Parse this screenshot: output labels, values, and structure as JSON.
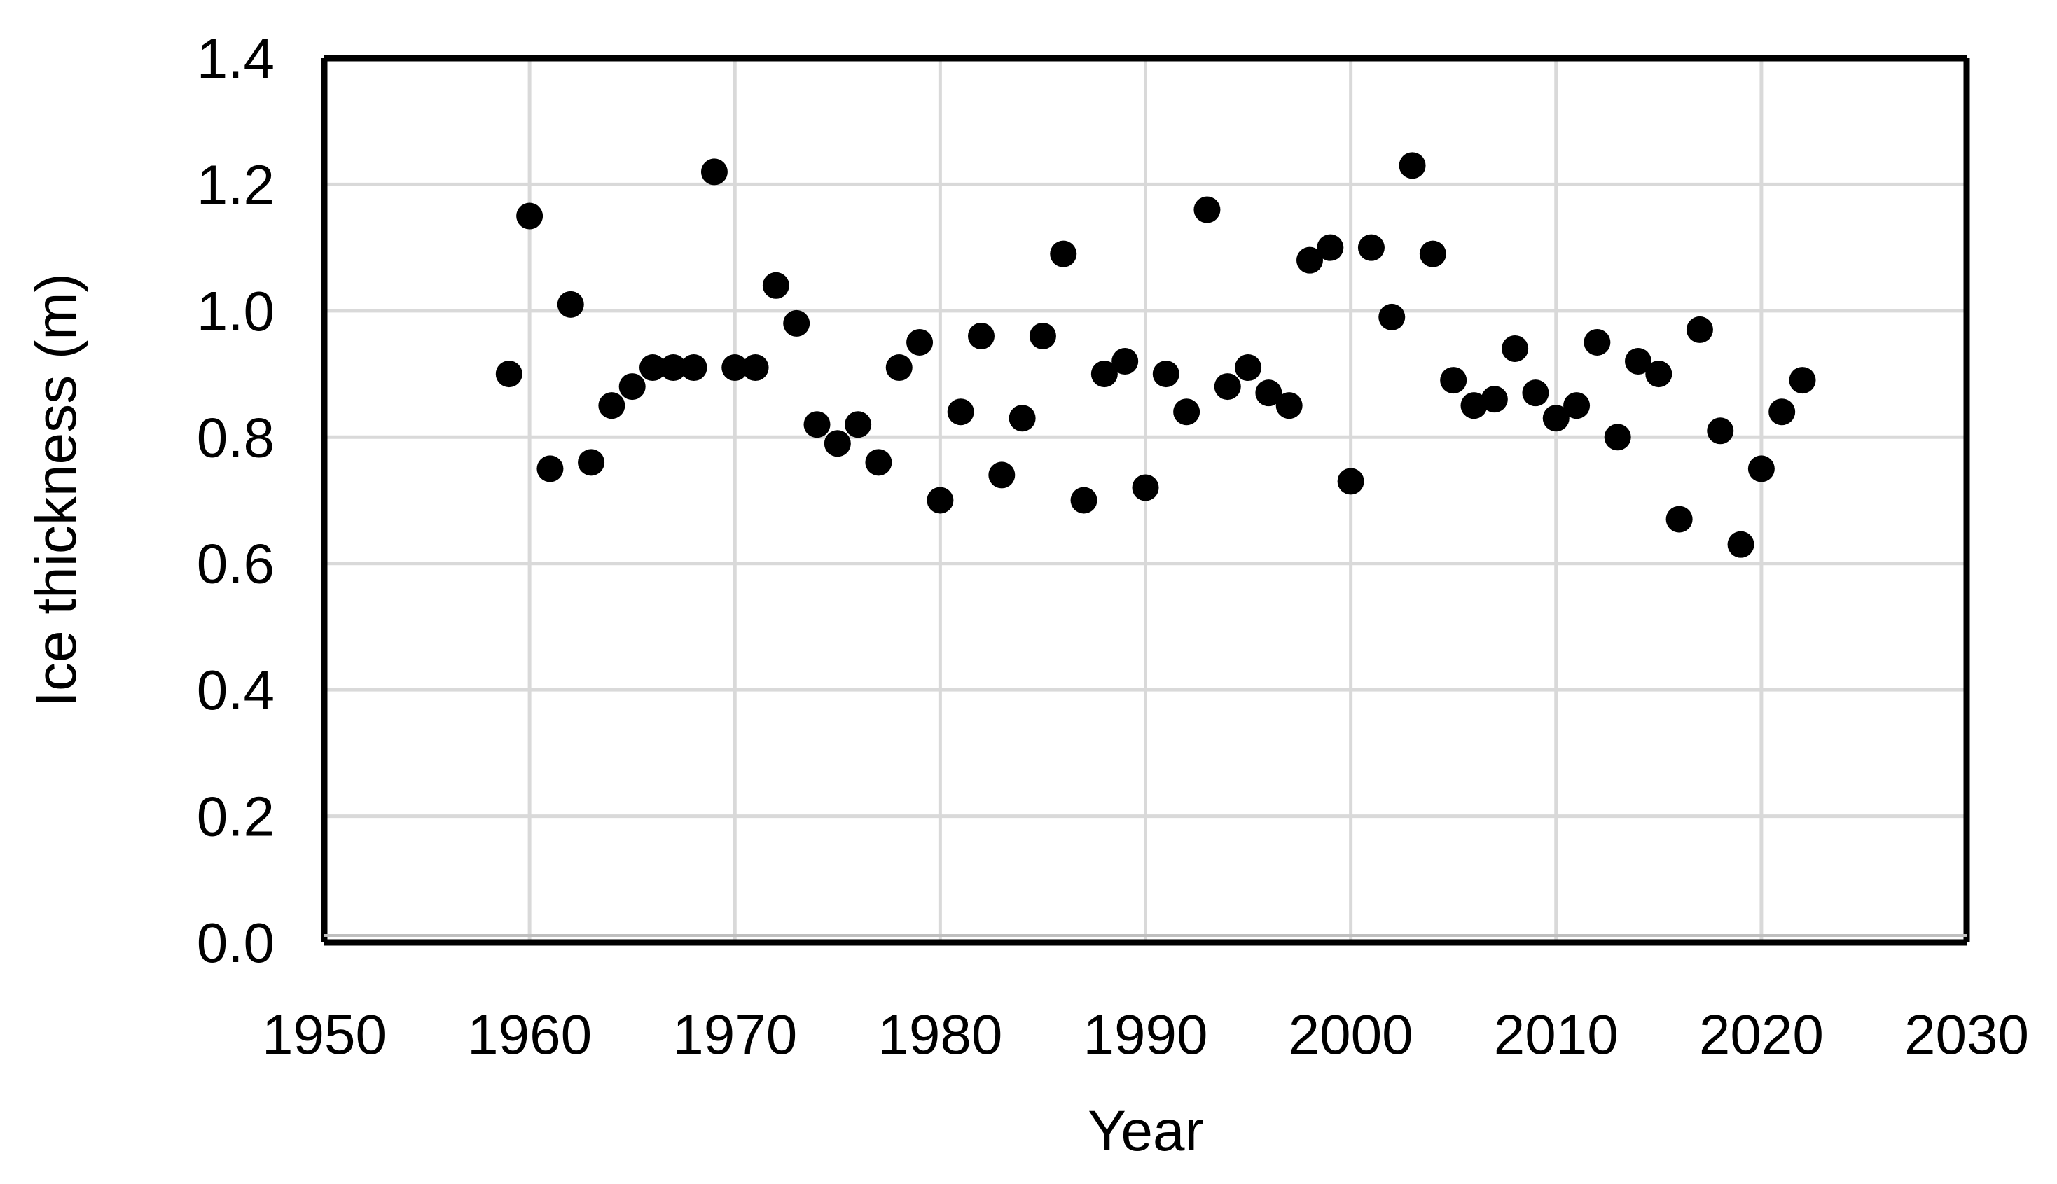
{
  "chart_data": {
    "type": "scatter",
    "title": "",
    "xlabel": "Year",
    "ylabel": "Ice thickness  (m)",
    "xlim": [
      1950,
      2030
    ],
    "ylim": [
      0.0,
      1.4
    ],
    "x_ticks": [
      "1950",
      "1960",
      "1970",
      "1980",
      "1990",
      "2000",
      "2010",
      "2020",
      "2030"
    ],
    "y_ticks": [
      "0.0",
      "0.2",
      "0.4",
      "0.6",
      "0.8",
      "1.0",
      "1.2",
      "1.4"
    ],
    "grid": true,
    "legend": "none",
    "marker_color": "#000000",
    "grid_color": "#d9d9d9",
    "series": [
      {
        "x": [
          1959,
          1960,
          1961,
          1962,
          1963,
          1964,
          1965,
          1966,
          1967,
          1968,
          1969,
          1970,
          1971,
          1972,
          1973,
          1974,
          1975,
          1976,
          1977,
          1978,
          1979,
          1980,
          1981,
          1982,
          1983,
          1984,
          1985,
          1986,
          1987,
          1988,
          1989,
          1990,
          1991,
          1992,
          1993,
          1994,
          1995,
          1996,
          1997,
          1998,
          1999,
          2000,
          2001,
          2002,
          2003,
          2004,
          2005,
          2006,
          2007,
          2008,
          2009,
          2010,
          2011,
          2012,
          2013,
          2014,
          2015,
          2016,
          2017,
          2018,
          2019,
          2020,
          2021,
          2022
        ],
        "y": [
          0.9,
          1.15,
          0.75,
          1.01,
          0.76,
          0.85,
          0.88,
          0.91,
          0.91,
          0.91,
          1.22,
          0.91,
          0.91,
          1.04,
          0.98,
          0.82,
          0.79,
          0.82,
          0.76,
          0.91,
          0.95,
          0.7,
          0.84,
          0.96,
          0.74,
          0.83,
          0.96,
          1.09,
          0.7,
          0.9,
          0.92,
          0.72,
          0.9,
          0.84,
          1.16,
          0.88,
          0.91,
          0.87,
          0.85,
          1.08,
          1.1,
          0.73,
          1.1,
          0.99,
          1.23,
          1.09,
          0.89,
          0.85,
          0.86,
          0.94,
          0.87,
          0.83,
          0.85,
          0.95,
          0.8,
          0.92,
          0.9,
          0.67,
          0.97,
          0.81,
          0.63,
          0.75,
          0.84,
          0.89
        ]
      }
    ]
  }
}
